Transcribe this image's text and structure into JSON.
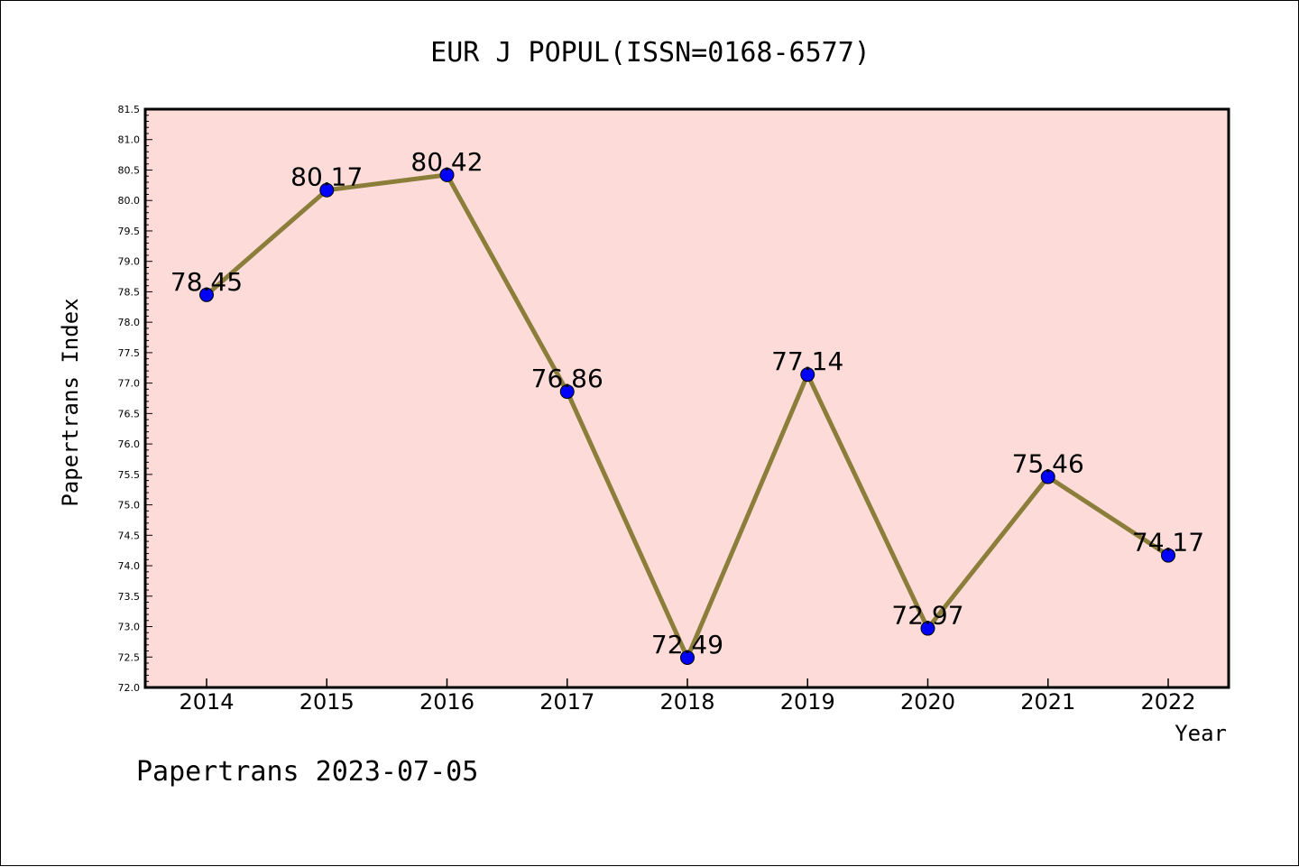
{
  "chart_data": {
    "type": "line",
    "title": "EUR J POPUL(ISSN=0168-6577)",
    "xlabel": "Year",
    "ylabel": "Papertrans Index",
    "categories": [
      "2014",
      "2015",
      "2016",
      "2017",
      "2018",
      "2019",
      "2020",
      "2021",
      "2022"
    ],
    "series": [
      {
        "values": [
          78.45,
          80.17,
          80.42,
          76.86,
          72.49,
          77.14,
          72.97,
          75.46,
          74.17
        ],
        "data_labels": [
          "78.45",
          "80.17",
          "80.42",
          "76.86",
          "72.49",
          "77.14",
          "72.97",
          "75.46",
          "74.17"
        ]
      }
    ],
    "ylim": [
      72.0,
      81.5
    ],
    "yticks": [
      "72.0",
      "72.5",
      "73.0",
      "73.5",
      "74.0",
      "74.5",
      "75.0",
      "75.5",
      "76.0",
      "76.5",
      "77.0",
      "77.5",
      "78.0",
      "78.5",
      "79.0",
      "79.5",
      "80.0",
      "80.5",
      "81.0",
      "81.5"
    ],
    "grid": false,
    "colors": {
      "plot_background": "#fddbd8",
      "line": "#8b7d3a",
      "marker": "#0000ff"
    }
  },
  "footer": "Papertrans 2023-07-05"
}
